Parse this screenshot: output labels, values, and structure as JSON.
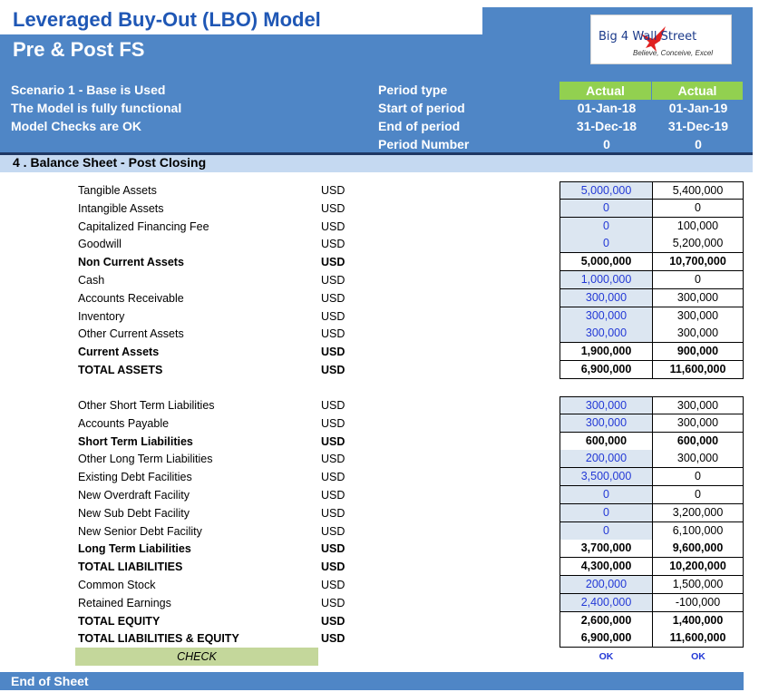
{
  "header": {
    "title": "Leveraged Buy-Out (LBO) Model",
    "subtitle": "Pre & Post FS"
  },
  "logo": {
    "name": "Big 4 Wall Street",
    "tagline": "Believe, Conceive, Excel"
  },
  "status": {
    "scenario": "Scenario 1 - Base is Used",
    "functional": "The Model is fully functional",
    "checks": "Model Checks are OK"
  },
  "period": {
    "labels": [
      "Period type",
      "Start of period",
      "End of period",
      "Period Number"
    ],
    "columns": [
      {
        "type": "Actual",
        "start": "01-Jan-18",
        "end": "31-Dec-18",
        "number": "0"
      },
      {
        "type": "Actual",
        "start": "01-Jan-19",
        "end": "31-Dec-19",
        "number": "0"
      }
    ]
  },
  "section": {
    "title": "4 . Balance Sheet - Post Closing"
  },
  "assets": [
    {
      "label": "Tangible Assets",
      "unit": "USD",
      "v1": "5,000,000",
      "v2": "5,400,000",
      "bold": false,
      "input": true
    },
    {
      "label": "Intangible Assets",
      "unit": "USD",
      "v1": "0",
      "v2": "0",
      "bold": false,
      "input": true
    },
    {
      "label": "Capitalized Financing Fee",
      "unit": "USD",
      "v1": "0",
      "v2": "100,000",
      "bold": false,
      "input": true
    },
    {
      "label": "Goodwill",
      "unit": "USD",
      "v1": "0",
      "v2": "5,200,000",
      "bold": false,
      "input": true
    },
    {
      "label": "Non Current Assets",
      "unit": "USD",
      "v1": "5,000,000",
      "v2": "10,700,000",
      "bold": true,
      "input": false
    },
    {
      "label": "Cash",
      "unit": "USD",
      "v1": "1,000,000",
      "v2": "0",
      "bold": false,
      "input": true
    },
    {
      "label": "Accounts Receivable",
      "unit": "USD",
      "v1": "300,000",
      "v2": "300,000",
      "bold": false,
      "input": true
    },
    {
      "label": "Inventory",
      "unit": "USD",
      "v1": "300,000",
      "v2": "300,000",
      "bold": false,
      "input": true
    },
    {
      "label": "Other Current Assets",
      "unit": "USD",
      "v1": "300,000",
      "v2": "300,000",
      "bold": false,
      "input": true
    },
    {
      "label": "Current Assets",
      "unit": "USD",
      "v1": "1,900,000",
      "v2": "900,000",
      "bold": true,
      "input": false
    },
    {
      "label": "TOTAL ASSETS",
      "unit": "USD",
      "v1": "6,900,000",
      "v2": "11,600,000",
      "bold": true,
      "input": false
    }
  ],
  "liabilities": [
    {
      "label": "Other Short Term Liabilities",
      "unit": "USD",
      "v1": "300,000",
      "v2": "300,000",
      "bold": false,
      "input": true
    },
    {
      "label": "Accounts Payable",
      "unit": "USD",
      "v1": "300,000",
      "v2": "300,000",
      "bold": false,
      "input": true
    },
    {
      "label": "Short Term Liabilities",
      "unit": "USD",
      "v1": "600,000",
      "v2": "600,000",
      "bold": true,
      "input": false
    },
    {
      "label": "Other Long Term Liabilities",
      "unit": "USD",
      "v1": "200,000",
      "v2": "300,000",
      "bold": false,
      "input": true
    },
    {
      "label": "Existing Debt Facilities",
      "unit": "USD",
      "v1": "3,500,000",
      "v2": "0",
      "bold": false,
      "input": true
    },
    {
      "label": "New Overdraft Facility",
      "unit": "USD",
      "v1": "0",
      "v2": "0",
      "bold": false,
      "input": true
    },
    {
      "label": "New Sub Debt Facility",
      "unit": "USD",
      "v1": "0",
      "v2": "3,200,000",
      "bold": false,
      "input": true
    },
    {
      "label": "New Senior Debt Facility",
      "unit": "USD",
      "v1": "0",
      "v2": "6,100,000",
      "bold": false,
      "input": true
    },
    {
      "label": "Long Term Liabilities",
      "unit": "USD",
      "v1": "3,700,000",
      "v2": "9,600,000",
      "bold": true,
      "input": false
    },
    {
      "label": "TOTAL LIABILITIES",
      "unit": "USD",
      "v1": "4,300,000",
      "v2": "10,200,000",
      "bold": true,
      "input": false
    },
    {
      "label": "Common Stock",
      "unit": "USD",
      "v1": "200,000",
      "v2": "1,500,000",
      "bold": false,
      "input": true
    },
    {
      "label": "Retained Earnings",
      "unit": "USD",
      "v1": "2,400,000",
      "v2": "-100,000",
      "bold": false,
      "input": true
    },
    {
      "label": "TOTAL EQUITY",
      "unit": "USD",
      "v1": "2,600,000",
      "v2": "1,400,000",
      "bold": true,
      "input": false
    },
    {
      "label": "TOTAL LIABILITIES & EQUITY",
      "unit": "USD",
      "v1": "6,900,000",
      "v2": "11,600,000",
      "bold": true,
      "input": false
    }
  ],
  "check": {
    "label": "CHECK",
    "values": [
      "OK",
      "OK"
    ]
  },
  "footer": {
    "label": "End of Sheet"
  },
  "colors": {
    "header_blue": "#4f86c6",
    "title_blue": "#1f57b5",
    "actual_green": "#92d050",
    "input_fill": "#dce6f1",
    "input_text": "#2339d6",
    "check_green": "#c4d79b"
  }
}
